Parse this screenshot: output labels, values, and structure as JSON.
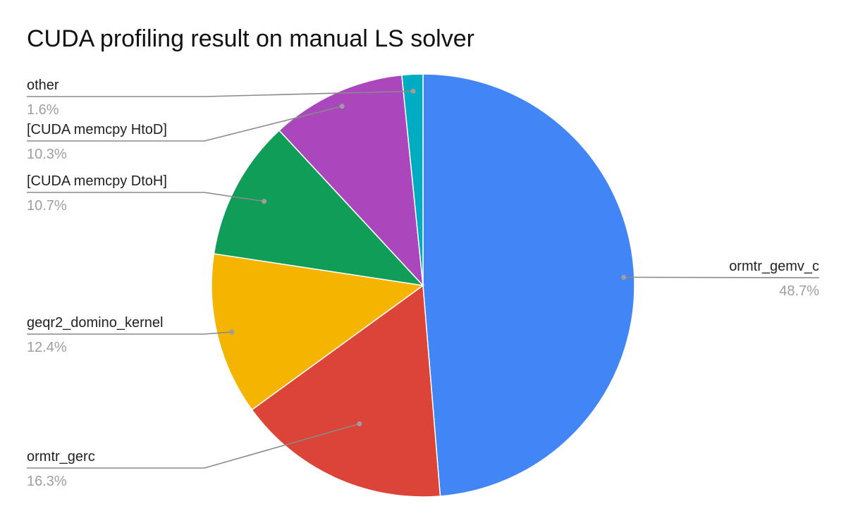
{
  "chart_data": {
    "type": "pie",
    "title": "CUDA profiling result on manual LS solver",
    "slices": [
      {
        "label": "ormtr_gemv_c",
        "value": 48.7,
        "value_label": "48.7%",
        "color": "#4285f4"
      },
      {
        "label": "ormtr_gerc",
        "value": 16.3,
        "value_label": "16.3%",
        "color": "#db4437"
      },
      {
        "label": "geqr2_domino_kernel",
        "value": 12.4,
        "value_label": "12.4%",
        "color": "#f4b400"
      },
      {
        "label": "[CUDA memcpy DtoH]",
        "value": 10.7,
        "value_label": "10.7%",
        "color": "#0f9d58"
      },
      {
        "label": "[CUDA memcpy HtoD]",
        "value": 10.3,
        "value_label": "10.3%",
        "color": "#ab47bc"
      },
      {
        "label": "other",
        "value": 1.6,
        "value_label": "1.6%",
        "color": "#00acc1"
      }
    ],
    "legend": "none"
  }
}
